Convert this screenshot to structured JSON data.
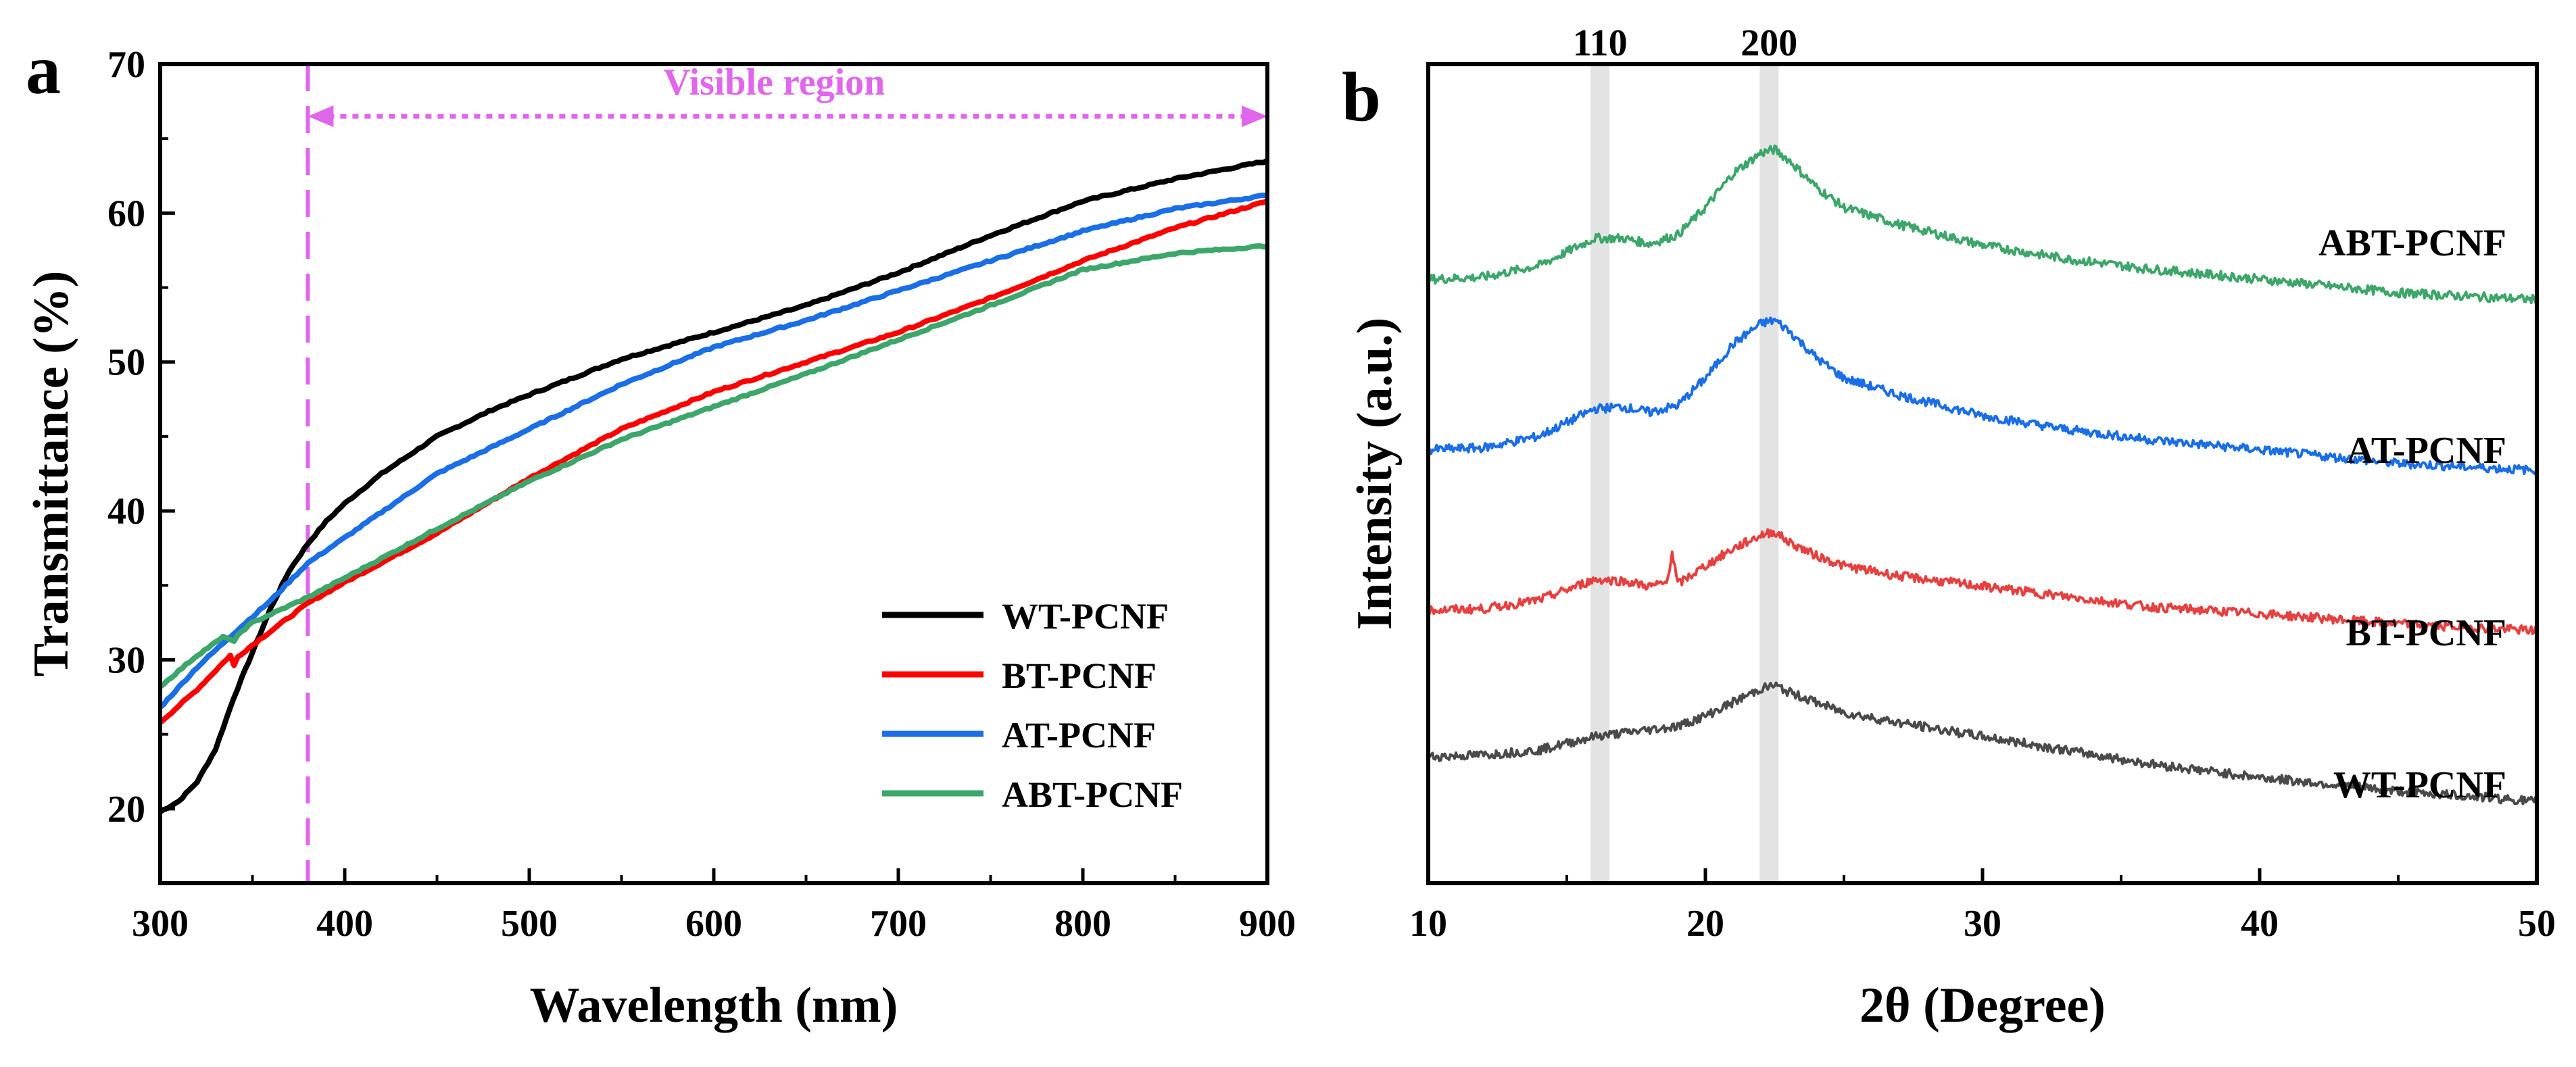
{
  "figure": {
    "panels": [
      "a",
      "b"
    ]
  },
  "chart_data": [
    {
      "panel": "a",
      "type": "line",
      "title": "",
      "xlabel": "Wavelength (nm)",
      "ylabel": "Transmittance (%)",
      "xlim": [
        300,
        900
      ],
      "ylim": [
        15,
        70
      ],
      "xticks": [
        300,
        400,
        500,
        600,
        700,
        800,
        900
      ],
      "yticks": [
        20,
        30,
        40,
        50,
        60,
        70
      ],
      "grid": false,
      "legend_position": "bottom-right",
      "annotation": {
        "text": "Visible region",
        "color": "#e066ec",
        "marker_x": 380,
        "arrow_from": 380,
        "arrow_to": 900,
        "arrow_y": 66.5
      },
      "series": [
        {
          "name": "WT-PCNF",
          "color": "#000000",
          "x": [
            300,
            310,
            320,
            330,
            340,
            350,
            360,
            370,
            380,
            390,
            400,
            420,
            450,
            480,
            500,
            550,
            600,
            650,
            700,
            750,
            800,
            850,
            900
          ],
          "y": [
            19.8,
            20.5,
            21.8,
            24,
            27.5,
            30.5,
            33.5,
            36,
            37.8,
            39.3,
            40.5,
            42.5,
            45,
            46.8,
            47.8,
            50.2,
            52,
            53.8,
            56,
            58.5,
            60.8,
            62.3,
            63.5
          ]
        },
        {
          "name": "BT-PCNF",
          "color": "#ff0000",
          "x": [
            300,
            320,
            338,
            340,
            342,
            350,
            380,
            400,
            450,
            500,
            550,
            600,
            650,
            700,
            750,
            800,
            850,
            900
          ],
          "y": [
            25.8,
            28,
            30.3,
            29.6,
            30.2,
            31,
            33.8,
            35.2,
            38.5,
            42.2,
            45.5,
            48,
            50,
            52,
            54.3,
            56.8,
            59,
            60.8
          ]
        },
        {
          "name": "AT-PCNF",
          "color": "#1a6ee6",
          "x": [
            300,
            320,
            340,
            360,
            380,
            400,
            450,
            500,
            550,
            600,
            650,
            700,
            750,
            800,
            850,
            900
          ],
          "y": [
            26.8,
            29.5,
            31.8,
            34,
            36.5,
            38.2,
            42.5,
            45.5,
            48.5,
            51,
            52.8,
            54.8,
            56.8,
            58.8,
            60.3,
            61.2
          ]
        },
        {
          "name": "ABT-PCNF",
          "color": "#3da66a",
          "x": [
            300,
            320,
            335,
            340,
            343,
            350,
            380,
            400,
            450,
            500,
            550,
            600,
            650,
            700,
            750,
            800,
            850,
            900
          ],
          "y": [
            28.2,
            30.3,
            31.6,
            31.2,
            31.8,
            32.5,
            34.2,
            35.5,
            38.8,
            42,
            44.8,
            47,
            49.2,
            51.5,
            53.8,
            56.2,
            57.3,
            57.8
          ]
        }
      ]
    },
    {
      "panel": "b",
      "type": "line",
      "title": "",
      "xlabel": "2θ (Degree)",
      "ylabel": "Intensity (a.u.)",
      "xlim": [
        10,
        50
      ],
      "xticks": [
        10,
        20,
        30,
        40,
        50
      ],
      "grid": false,
      "peaks": [
        {
          "label": "110",
          "x": 16.2
        },
        {
          "label": "200",
          "x": 22.3
        }
      ],
      "series": [
        {
          "name": "ABT-PCNF",
          "color": "#3da66a",
          "offset": 75,
          "x": [
            10,
            12,
            14,
            15,
            16,
            17,
            18,
            19,
            20,
            21,
            22,
            22.5,
            23,
            24,
            25,
            27,
            30,
            33,
            36,
            40,
            45,
            50
          ],
          "y": [
            3.5,
            3.8,
            5.5,
            7.5,
            9.5,
            9.5,
            8.7,
            10,
            14,
            19,
            22,
            22.5,
            21,
            17,
            14,
            11.5,
            8.5,
            6.5,
            5,
            3.5,
            1.5,
            0.5
          ]
        },
        {
          "name": "AT-PCNF",
          "color": "#1a6ee6",
          "offset": 50,
          "x": [
            10,
            12,
            14,
            15,
            16,
            17,
            18,
            19,
            20,
            21,
            22,
            22.5,
            23,
            24,
            25,
            27,
            30,
            33,
            36,
            40,
            45,
            50
          ],
          "y": [
            3.5,
            3.8,
            5.5,
            7.5,
            9.5,
            9.8,
            9,
            10,
            14,
            19,
            22,
            22.5,
            21,
            17,
            14,
            11.5,
            8.5,
            6.5,
            5,
            3.5,
            1.5,
            0.5
          ]
        },
        {
          "name": "BT-PCNF",
          "color": "#e64040",
          "offset": 25,
          "x": [
            10,
            12,
            14,
            15,
            16,
            17,
            18,
            18.6,
            18.8,
            19,
            20,
            21,
            22,
            22.5,
            23,
            24,
            25,
            27,
            30,
            33,
            36,
            40,
            45,
            50
          ],
          "y": [
            5,
            5.2,
            6.5,
            8,
            9.5,
            9.3,
            8.5,
            9,
            13.5,
            8.8,
            11.5,
            14,
            16,
            16.5,
            15,
            13,
            11.5,
            10,
            8.5,
            7,
            5.5,
            4.5,
            3,
            2
          ]
        },
        {
          "name": "WT-PCNF",
          "color": "#4a4a4a",
          "offset": 0,
          "x": [
            10,
            12,
            14,
            15,
            16,
            17,
            18,
            19,
            20,
            21,
            22,
            22.5,
            23,
            24,
            25,
            27,
            30,
            33,
            36,
            40,
            45,
            50
          ],
          "y": [
            8.5,
            8.8,
            9.5,
            10.5,
            11.5,
            12,
            12.5,
            13,
            14.5,
            16.5,
            18.5,
            19,
            18,
            16.5,
            15,
            13.5,
            11.5,
            9.5,
            7.5,
            5.5,
            3.5,
            2
          ]
        }
      ]
    }
  ]
}
